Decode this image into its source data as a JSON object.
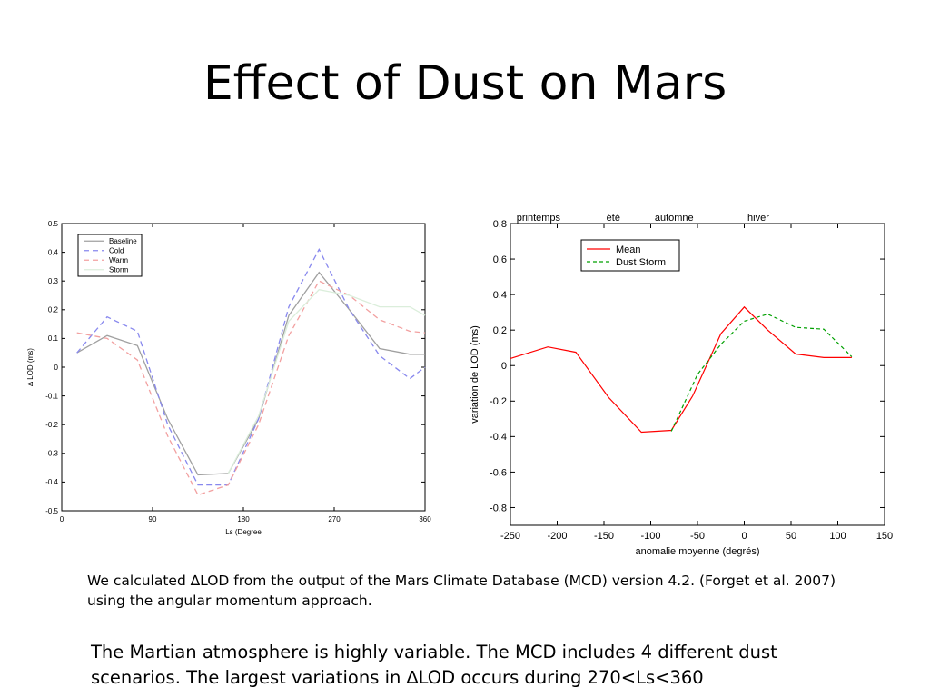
{
  "slide": {
    "title": "Effect of Dust on Mars",
    "caption1_line1": "We calculated ∆LOD from the output  of the Mars Climate Database (MCD) version 4.2. (Forget et al. 2007)",
    "caption1_line2": "using the angular momentum approach.",
    "caption2_line1": "The Martian atmosphere is highly variable. The MCD includes 4 different dust",
    "caption2_line2": "scenarios. The largest variations in ∆LOD occurs during 270<Ls<360"
  },
  "chart_data": [
    {
      "type": "line",
      "xlabel": "Ls (Degree",
      "ylabel": "∆ LOD (ms)",
      "xlim": [
        0,
        360
      ],
      "ylim": [
        -0.5,
        0.5
      ],
      "xticks": [
        0,
        90,
        180,
        270,
        360
      ],
      "xtick_labels": [
        "0",
        "90",
        "180",
        "270",
        "360"
      ],
      "yticks": [
        -0.5,
        -0.4,
        -0.3,
        -0.2,
        -0.1,
        0,
        0.1,
        0.2,
        0.3,
        0.4,
        0.5
      ],
      "ytick_labels": [
        "-0.5",
        "-0.4",
        "-0.3",
        "-0.2",
        "-0.1",
        "0",
        "0.1",
        "0.2",
        "0.3",
        "0.4",
        "0.5"
      ],
      "grid": false,
      "legend_position": "top-left",
      "series": [
        {
          "name": "Baseline",
          "color": "#a0a0a0",
          "dash": "",
          "x": [
            15,
            45,
            75,
            105,
            135,
            165,
            195,
            225,
            255,
            285,
            315,
            345,
            360
          ],
          "y": [
            0.05,
            0.11,
            0.075,
            -0.18,
            -0.375,
            -0.37,
            -0.18,
            0.18,
            0.33,
            0.2,
            0.065,
            0.045,
            0.045
          ]
        },
        {
          "name": "Cold",
          "color": "#8888ee",
          "dash": "6,4",
          "x": [
            15,
            45,
            75,
            105,
            135,
            165,
            195,
            225,
            255,
            285,
            315,
            345,
            360
          ],
          "y": [
            0.05,
            0.175,
            0.125,
            -0.2,
            -0.41,
            -0.41,
            -0.18,
            0.21,
            0.41,
            0.2,
            0.04,
            -0.04,
            0.0
          ]
        },
        {
          "name": "Warm",
          "color": "#f2a0a0",
          "dash": "6,4",
          "x": [
            15,
            45,
            75,
            105,
            135,
            165,
            195,
            225,
            255,
            285,
            315,
            345,
            360
          ],
          "y": [
            0.12,
            0.1,
            0.025,
            -0.24,
            -0.445,
            -0.41,
            -0.2,
            0.11,
            0.3,
            0.25,
            0.165,
            0.125,
            0.12
          ]
        },
        {
          "name": "Storm",
          "color": "#dbeedb",
          "dash": "",
          "x": [
            165,
            195,
            225,
            255,
            285,
            315,
            345,
            360
          ],
          "y": [
            -0.37,
            -0.17,
            0.16,
            0.27,
            0.25,
            0.21,
            0.21,
            0.18
          ]
        }
      ]
    },
    {
      "type": "line",
      "xlabel": "anomalie moyenne (degrés)",
      "ylabel": "variation de LOD (ms)",
      "xlim": [
        -250,
        150
      ],
      "ylim": [
        -0.9,
        0.8
      ],
      "xticks": [
        -250,
        -200,
        -150,
        -100,
        -50,
        0,
        50,
        100,
        150
      ],
      "xtick_labels": [
        "-250",
        "-200",
        "-150",
        "-100",
        "-50",
        "0",
        "50",
        "100",
        "150"
      ],
      "yticks": [
        -0.8,
        -0.6,
        -0.4,
        -0.2,
        0,
        0.2,
        0.4,
        0.6,
        0.8
      ],
      "ytick_labels": [
        "-0.8",
        "-0.6",
        "-0.4",
        "-0.2",
        "0",
        "0.2",
        "0.4",
        "0.6",
        "0.8"
      ],
      "grid": false,
      "legend_position": "top-left",
      "seasons": [
        {
          "label": "printemps",
          "x": -220
        },
        {
          "label": "été",
          "x": -140
        },
        {
          "label": "automne",
          "x": -75
        },
        {
          "label": "hiver",
          "x": 15
        }
      ],
      "series": [
        {
          "name": "Mean",
          "color": "#ff0000",
          "dash": "",
          "x": [
            -250,
            -210,
            -180,
            -145,
            -110,
            -78,
            -55,
            -25,
            0,
            25,
            55,
            85,
            115
          ],
          "y": [
            0.04,
            0.105,
            0.075,
            -0.18,
            -0.375,
            -0.365,
            -0.17,
            0.18,
            0.33,
            0.2,
            0.065,
            0.045,
            0.045
          ]
        },
        {
          "name": "Dust Storm",
          "color": "#00a000",
          "dash": "4,3",
          "x": [
            -78,
            -50,
            -25,
            0,
            25,
            55,
            85,
            115
          ],
          "y": [
            -0.37,
            -0.05,
            0.12,
            0.25,
            0.29,
            0.215,
            0.205,
            0.05
          ]
        }
      ]
    }
  ]
}
